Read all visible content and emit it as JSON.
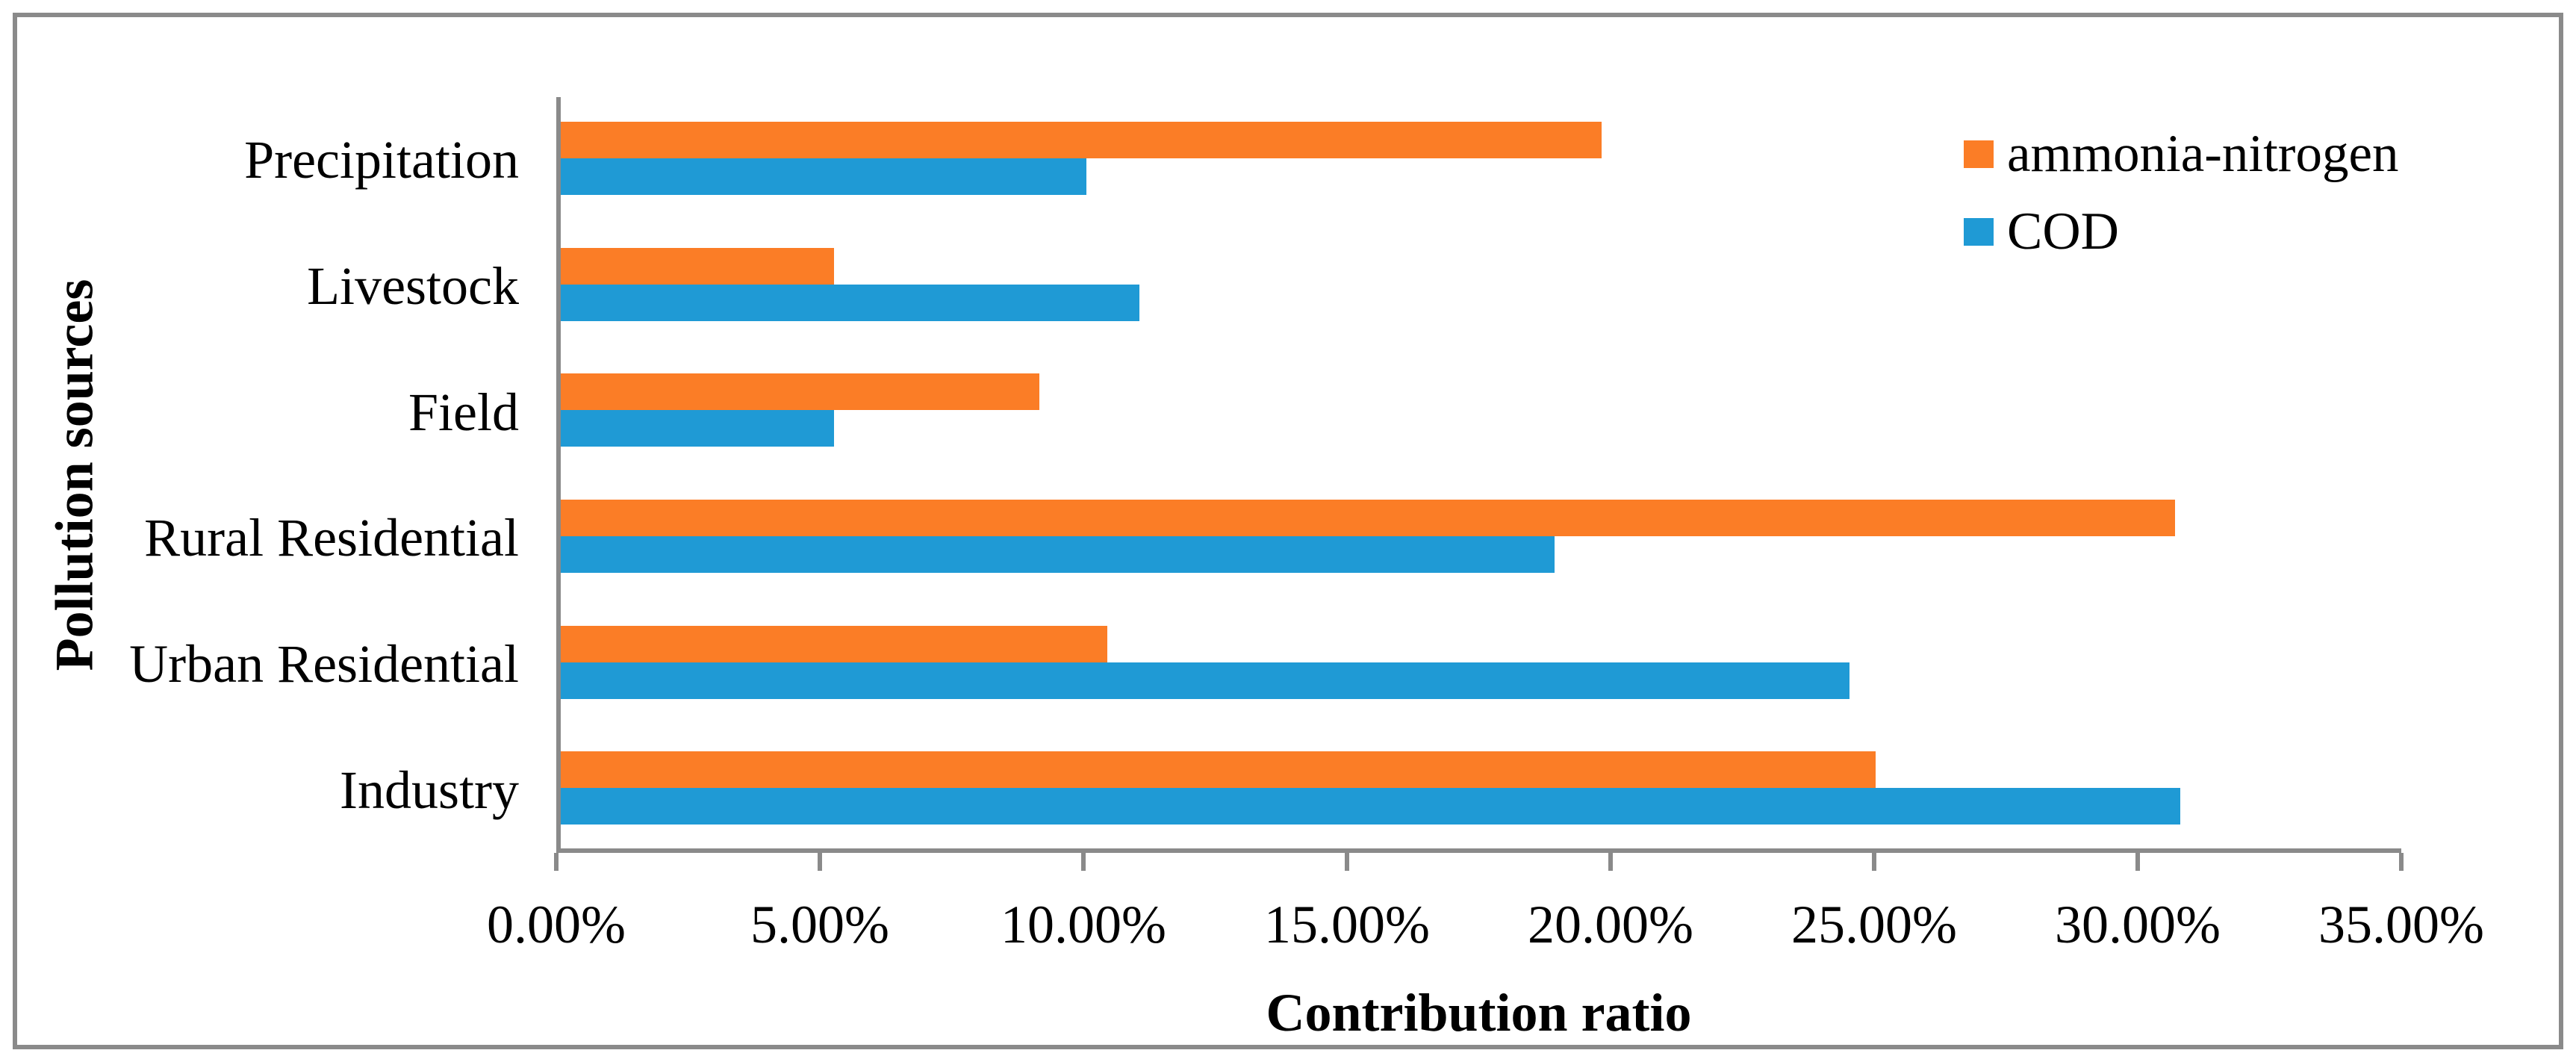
{
  "figure": {
    "background": "#ffffff",
    "border_color": "#8a8a8a"
  },
  "chart_data": {
    "type": "bar",
    "orientation": "horizontal",
    "title": "",
    "xlabel": "Contribution ratio",
    "ylabel": "Pollution sources",
    "categories_top_to_bottom": [
      "Precipitation",
      "Livestock",
      "Field",
      "Rural Residential",
      "Urban Residential",
      "Industry"
    ],
    "series": [
      {
        "name": "ammonia-nitrogen",
        "color": "#fb7d26",
        "values": [
          19.8,
          5.2,
          9.1,
          30.7,
          10.4,
          25.0
        ]
      },
      {
        "name": "COD",
        "color": "#1f9ad5",
        "values": [
          10.0,
          11.0,
          5.2,
          18.9,
          24.5,
          30.8
        ]
      }
    ],
    "xlim": [
      0,
      35
    ],
    "x_tick_step": 5,
    "x_tick_labels": [
      "0.00%",
      "5.00%",
      "10.00%",
      "15.00%",
      "20.00%",
      "25.00%",
      "30.00%",
      "35.00%"
    ],
    "grid": false,
    "legend_position": "top-right",
    "axis_color": "#8a8a8a"
  }
}
